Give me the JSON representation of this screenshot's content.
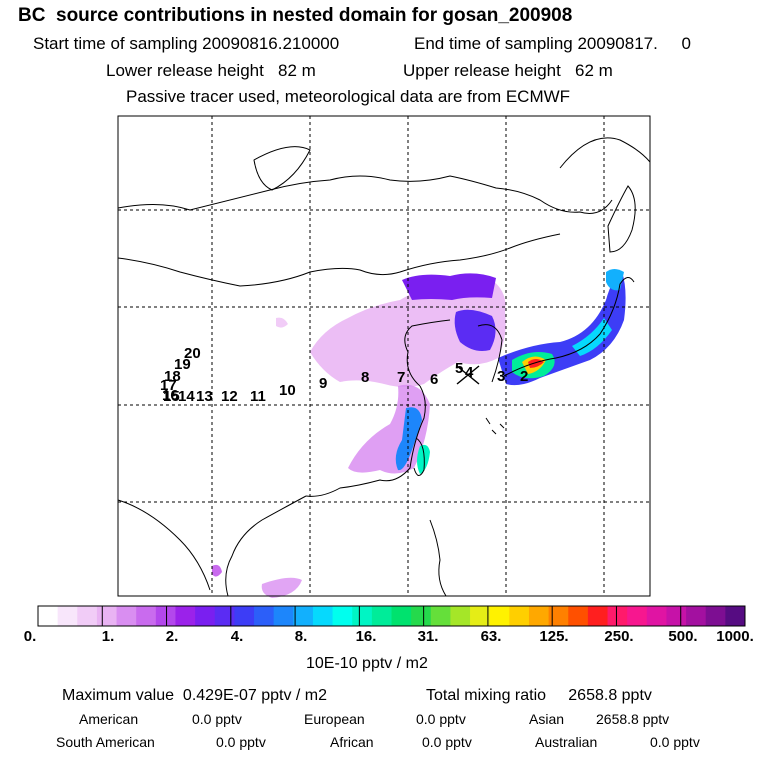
{
  "header": {
    "title": "BC  source contributions in nested domain for gosan_200908",
    "start_time": "Start time of sampling 20090816.210000",
    "end_time": "End time of sampling 20090817.     0",
    "lower_release": "Lower release height   82 m",
    "upper_release": "Upper release height   62 m",
    "tracer_note": "Passive tracer used, meteorological data are from ECMWF"
  },
  "map": {
    "trajectory_labels": [
      "2",
      "3",
      "4",
      "5",
      "6",
      "7",
      "8",
      "9",
      "10",
      "11",
      "12",
      "13",
      "14",
      "15",
      "16",
      "17",
      "18",
      "19",
      "20"
    ],
    "receptor_marker": "x-marker"
  },
  "colorbar": {
    "colors": [
      "#ffffff",
      "#f8e6fb",
      "#f1ccf7",
      "#e9b3f3",
      "#d98ef1",
      "#c96bee",
      "#b347ec",
      "#9b22ea",
      "#7a1ff0",
      "#5b2cf3",
      "#3d3df6",
      "#2c5ff9",
      "#1d86fb",
      "#12b0fd",
      "#06d9fd",
      "#00ffee",
      "#00f5c4",
      "#00ec99",
      "#00e26e",
      "#25d94c",
      "#65df3a",
      "#a5e628",
      "#e5ed16",
      "#fff200",
      "#ffcf00",
      "#ffa800",
      "#ff8000",
      "#ff5000",
      "#ff1f1f",
      "#ff1a6b",
      "#f7178f",
      "#e014a3",
      "#c612a8",
      "#a310a0",
      "#7d0e92",
      "#560c82"
    ],
    "labels": [
      "0.",
      "1.",
      "2.",
      "4.",
      "8.",
      "16.",
      "31.",
      "63.",
      "125.",
      "250.",
      "500.",
      "1000."
    ],
    "unit": "10E-10 pptv / m2"
  },
  "stats": {
    "max_value": "Maximum value  0.429E-07 pptv / m2",
    "total_mixing": "Total mixing ratio     2658.8 pptv",
    "regions": [
      {
        "name": "American",
        "value": "0.0 pptv"
      },
      {
        "name": "European",
        "value": "0.0 pptv"
      },
      {
        "name": "Asian",
        "value": "2658.8 pptv"
      },
      {
        "name": "South American",
        "value": "0.0 pptv"
      },
      {
        "name": "African",
        "value": "0.0 pptv"
      },
      {
        "name": "Australian",
        "value": "0.0 pptv"
      }
    ]
  }
}
